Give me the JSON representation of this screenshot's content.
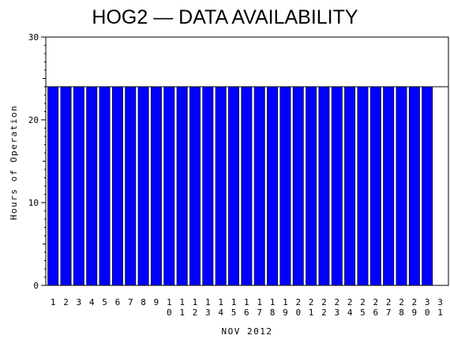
{
  "chart_data": {
    "type": "bar",
    "title": "HOG2 — DATA AVAILABILITY",
    "xlabel": "NOV 2012",
    "ylabel": "Hours of Operation",
    "ylim": [
      0,
      30
    ],
    "yticks": [
      "0",
      "10",
      "20",
      "30"
    ],
    "categories": [
      "1",
      "2",
      "3",
      "4",
      "5",
      "6",
      "7",
      "8",
      "9",
      "10",
      "11",
      "12",
      "13",
      "14",
      "15",
      "16",
      "17",
      "18",
      "19",
      "20",
      "21",
      "22",
      "23",
      "24",
      "25",
      "26",
      "27",
      "28",
      "29",
      "30",
      "31"
    ],
    "values": [
      24,
      24,
      24,
      24,
      24,
      24,
      24,
      24,
      24,
      24,
      24,
      24,
      24,
      24,
      24,
      24,
      24,
      24,
      24,
      24,
      24,
      24,
      24,
      24,
      24,
      24,
      24,
      24,
      24,
      24,
      null
    ],
    "reference_line": 24,
    "bar_color": "#0000ff",
    "grid": false
  }
}
